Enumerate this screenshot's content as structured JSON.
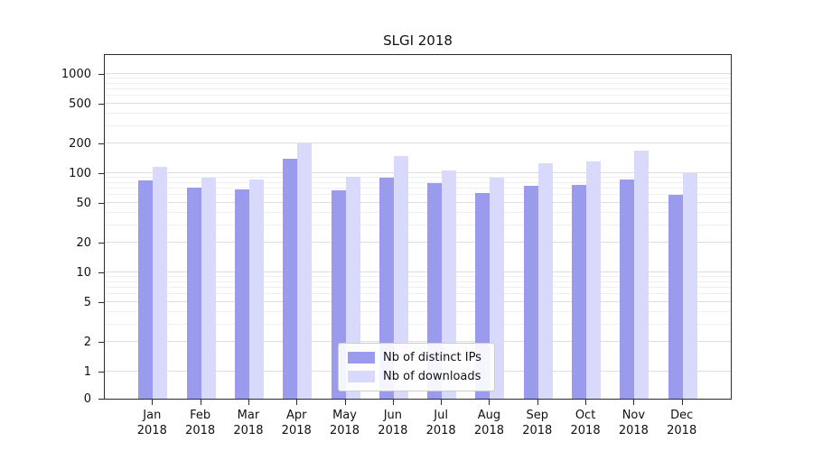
{
  "chart_data": {
    "type": "bar",
    "title": "SLGI 2018",
    "yscale": "symlog",
    "grid": true,
    "categories": [
      "Jan",
      "Feb",
      "Mar",
      "Apr",
      "May",
      "Jun",
      "Jul",
      "Aug",
      "Sep",
      "Oct",
      "Nov",
      "Dec"
    ],
    "year_label": "2018",
    "yticks": [
      0,
      1,
      2,
      5,
      10,
      20,
      50,
      100,
      200,
      500,
      1000
    ],
    "ylim": [
      0,
      1100
    ],
    "legend_position": "lower center",
    "series": [
      {
        "name": "Nb of distinct IPs",
        "color": "#9b9bee",
        "values": [
          85,
          72,
          68,
          140,
          67,
          90,
          80,
          63,
          74,
          77,
          87,
          60
        ]
      },
      {
        "name": "Nb of downloads",
        "color": "#d9d9fb",
        "values": [
          115,
          90,
          87,
          200,
          92,
          150,
          107,
          90,
          125,
          130,
          170,
          100
        ]
      }
    ]
  }
}
